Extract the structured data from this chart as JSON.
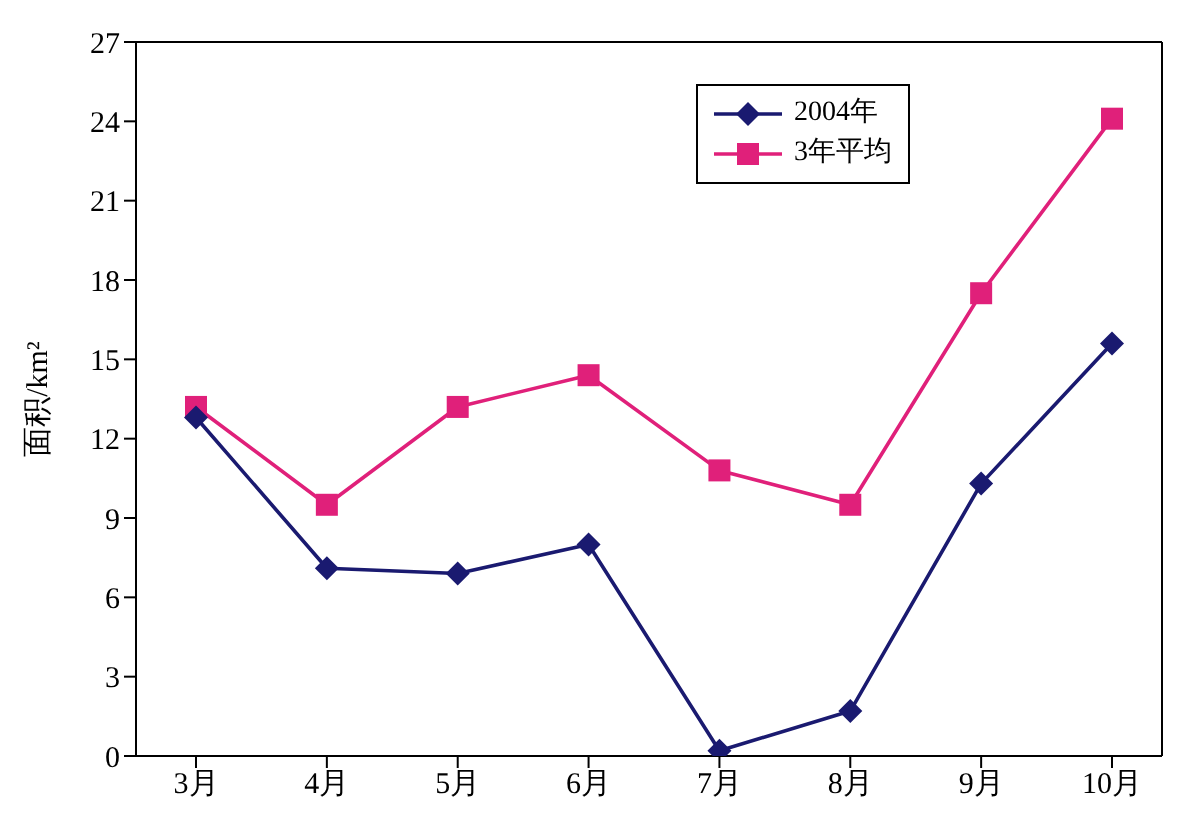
{
  "chart_data": {
    "type": "line",
    "ylabel": "面积/km²",
    "categories": [
      "3月",
      "4月",
      "5月",
      "6月",
      "7月",
      "8月",
      "9月",
      "10月"
    ],
    "series": [
      {
        "name": "2004年",
        "color": "#1a1a70",
        "marker": "diamond",
        "values": [
          12.8,
          7.1,
          6.9,
          8.0,
          0.2,
          1.7,
          10.3,
          15.6
        ]
      },
      {
        "name": "3年平均",
        "color": "#e0207a",
        "marker": "square",
        "values": [
          13.2,
          9.5,
          13.2,
          14.4,
          10.8,
          9.5,
          17.5,
          24.1
        ]
      }
    ],
    "ylim": [
      0,
      27
    ],
    "yticks": [
      0,
      3,
      6,
      9,
      12,
      15,
      18,
      21,
      24,
      27
    ],
    "grid": false,
    "legend": "top right"
  }
}
